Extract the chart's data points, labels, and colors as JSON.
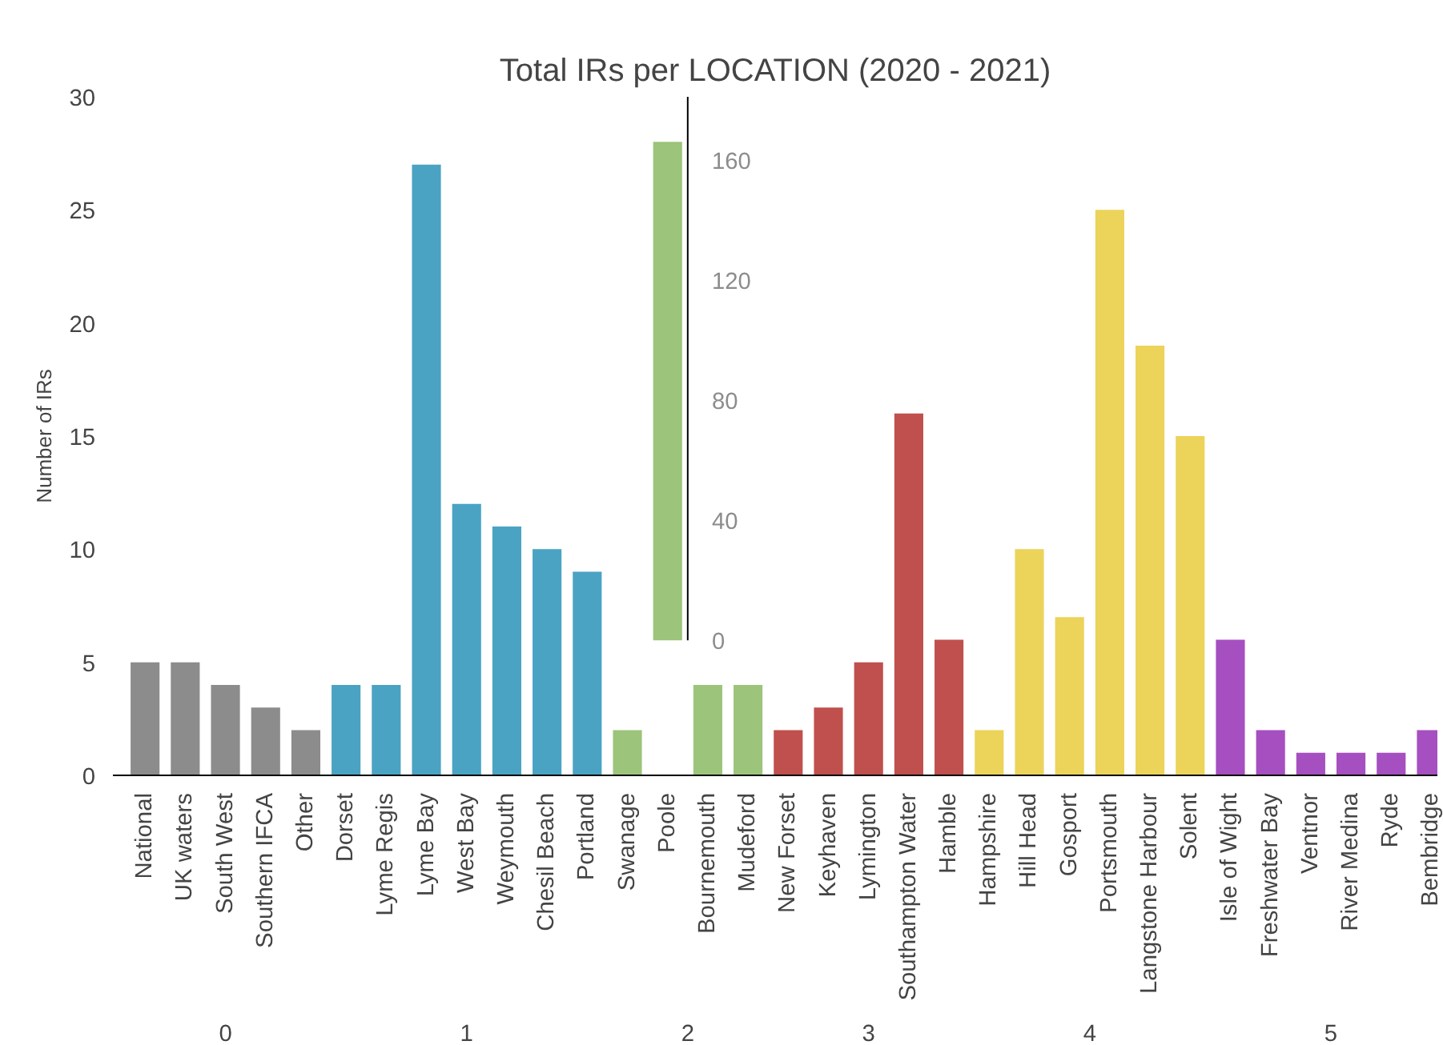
{
  "chart_data": {
    "type": "bar",
    "title": "Total IRs per LOCATION (2020 - 2021)",
    "ylabel": "Number of IRs",
    "categories": [
      "National",
      "UK waters",
      "South West",
      "Southern IFCA",
      "Other",
      "Dorset",
      "Lyme Regis",
      "Lyme Bay",
      "West Bay",
      "Weymouth",
      "Chesil Beach",
      "Portland",
      "Swanage",
      "Poole",
      "Bournemouth",
      "Mudeford",
      "New Forset",
      "Keyhaven",
      "Lymington",
      "Southampton Water",
      "Hamble",
      "Hampshire",
      "Hill Head",
      "Gosport",
      "Portsmouth",
      "Langstone Harbour",
      "Solent",
      "Isle of Wight",
      "Freshwater Bay",
      "Ventnor",
      "River Medina",
      "Ryde",
      "Bembridge"
    ],
    "series": [
      {
        "values": [
          5,
          5,
          4,
          3,
          2,
          4,
          4,
          27,
          12,
          11,
          10,
          9,
          2,
          null,
          4,
          4,
          2,
          3,
          5,
          16,
          6,
          2,
          10,
          7,
          25,
          19,
          15,
          6,
          2,
          1,
          1,
          1,
          2
        ],
        "colors": [
          "#8c8c8c",
          "#8c8c8c",
          "#8c8c8c",
          "#8c8c8c",
          "#8c8c8c",
          "#4aa3c2",
          "#4aa3c2",
          "#4aa3c2",
          "#4aa3c2",
          "#4aa3c2",
          "#4aa3c2",
          "#4aa3c2",
          "#9cc47a",
          "#9cc47a",
          "#9cc47a",
          "#9cc47a",
          "#c0504d",
          "#c0504d",
          "#c0504d",
          "#c0504d",
          "#c0504d",
          "#ecd35a",
          "#ecd35a",
          "#ecd35a",
          "#ecd35a",
          "#ecd35a",
          "#ecd35a",
          "#a64fc0",
          "#a64fc0",
          "#a64fc0",
          "#a64fc0",
          "#a64fc0",
          "#a64fc0"
        ]
      },
      {
        "axis": "y2",
        "color": "#9cc47a",
        "values": [
          null,
          null,
          null,
          null,
          null,
          null,
          null,
          null,
          null,
          null,
          null,
          null,
          null,
          166,
          null,
          null,
          null,
          null,
          null,
          null,
          null,
          null,
          null,
          null,
          null,
          null,
          null,
          null,
          null,
          null,
          null,
          null,
          null
        ]
      }
    ],
    "ylim": [
      0,
      30
    ],
    "yticks": [
      0,
      5,
      10,
      15,
      20,
      25,
      30
    ],
    "y2lim": [
      -45,
      181
    ],
    "y2ticks": [
      0,
      40,
      80,
      120,
      160
    ],
    "annotations": [
      "0",
      "1",
      "2",
      "3",
      "4",
      "5"
    ],
    "grid": false
  }
}
